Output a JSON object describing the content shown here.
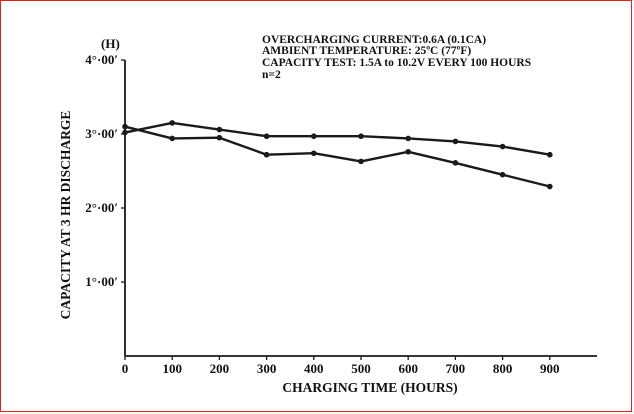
{
  "chart_data": {
    "type": "line",
    "title": "",
    "annotations": [
      "OVERCHARGING CURRENT:0.6A (0.1CA)",
      "AMBIENT TEMPERATURE:   25ºC (77ºF)",
      "CAPACITY TEST:    1.5A to 10.2V EVERY 100 HOURS",
      "n=2"
    ],
    "xlabel": "CHARGING TIME (HOURS)",
    "ylabel": "CAPACITY AT 3 HR DISCHARGE",
    "y_unit": "(H)",
    "x": [
      0,
      100,
      200,
      300,
      400,
      500,
      600,
      700,
      800,
      900
    ],
    "xlim": [
      0,
      1000
    ],
    "ylim": [
      0,
      4
    ],
    "x_ticks": [
      0,
      100,
      200,
      300,
      400,
      500,
      600,
      700,
      800,
      900
    ],
    "y_ticks": [
      {
        "value": 1,
        "label": "1°·00′"
      },
      {
        "value": 2,
        "label": "2°·00′"
      },
      {
        "value": 3,
        "label": "3°·00′"
      },
      {
        "value": 4,
        "label": "4°·00′"
      }
    ],
    "series": [
      {
        "values": [
          3.02,
          3.15,
          3.06,
          2.97,
          2.97,
          2.97,
          2.94,
          2.9,
          2.83,
          2.72
        ]
      },
      {
        "values": [
          3.1,
          2.94,
          2.95,
          2.72,
          2.74,
          2.63,
          2.76,
          2.61,
          2.45,
          2.29
        ]
      }
    ],
    "grid": false,
    "colors": {
      "line": "#1a1a1a",
      "frame": "#e2231a"
    }
  }
}
